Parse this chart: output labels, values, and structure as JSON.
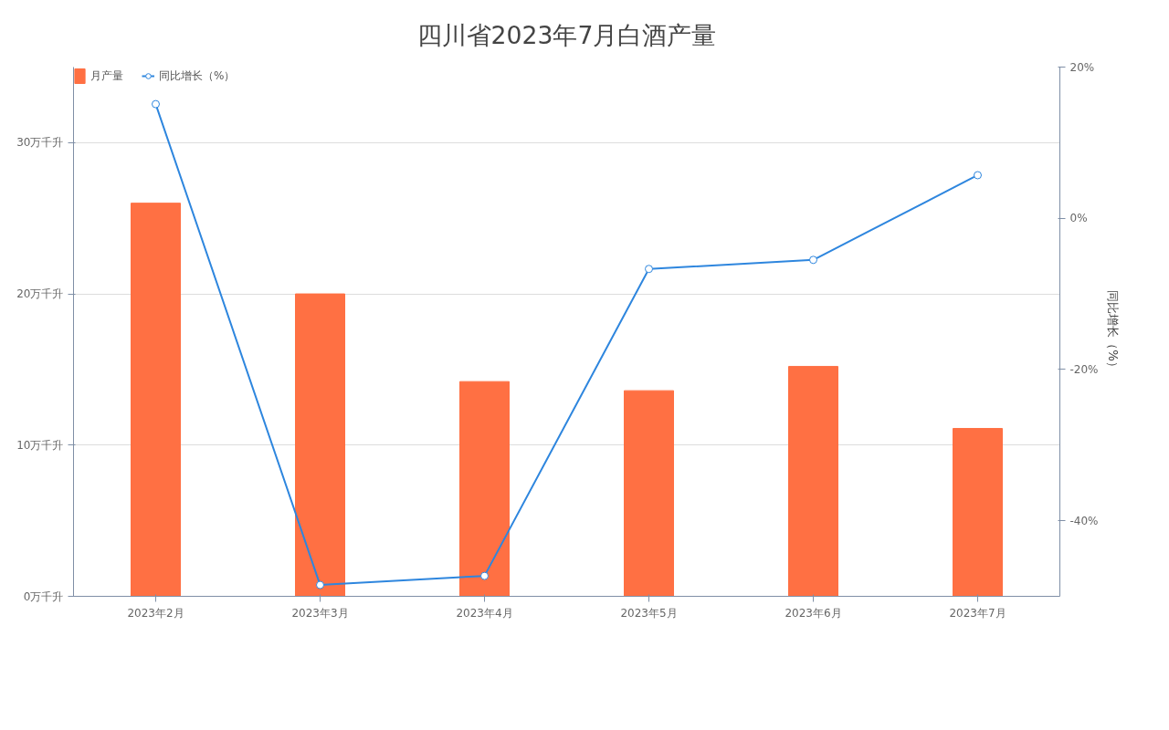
{
  "chart_data": {
    "type": "bar",
    "title": "四川省2023年7月白酒产量",
    "categories": [
      "2023年2月",
      "2023年3月",
      "2023年4月",
      "2023年5月",
      "2023年6月",
      "2023年7月"
    ],
    "series": [
      {
        "name": "月产量",
        "color": "#ff7043",
        "values": [
          26.0,
          20.0,
          14.2,
          13.6,
          15.2,
          11.1
        ]
      },
      {
        "name": "同比增长（%）",
        "type": "line",
        "axis": "y2",
        "color": "#2e86de",
        "values": [
          15.1,
          -48.5,
          -47.3,
          -6.7,
          -5.5,
          5.7
        ]
      }
    ],
    "ylim": [
      0,
      35
    ],
    "yticks": [
      {
        "value": 0,
        "label": "0万千升"
      },
      {
        "value": 10,
        "label": "10万千升"
      },
      {
        "value": 20,
        "label": "20万千升"
      },
      {
        "value": 30,
        "label": "30万千升"
      }
    ],
    "y2lim": [
      -50,
      20
    ],
    "y2ticks": [
      {
        "value": -40,
        "label": "-40%"
      },
      {
        "value": -20,
        "label": "-20%"
      },
      {
        "value": 0,
        "label": "0%"
      },
      {
        "value": 20,
        "label": "20%"
      }
    ],
    "y2label": "同比增长（%）",
    "grid": "y",
    "legend": "top left",
    "marker": "circle",
    "line_style": "solid"
  }
}
